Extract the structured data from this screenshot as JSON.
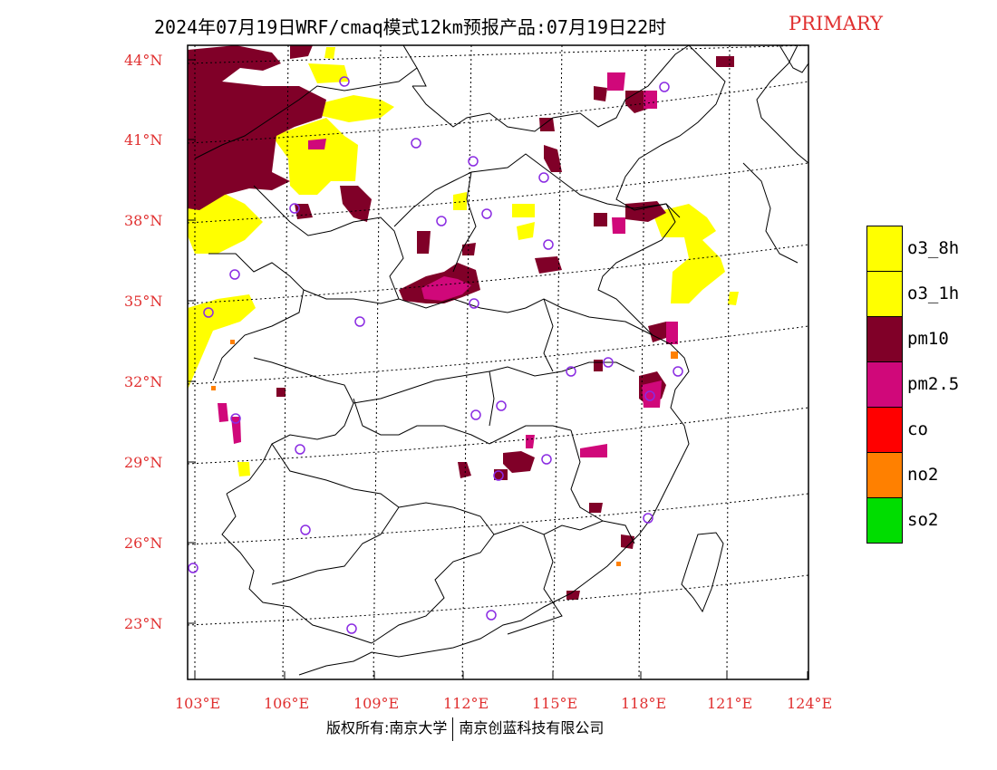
{
  "title": {
    "main": "2024年07月19日WRF/cmaq模式12km预报产品:07月19日22时",
    "pollutant": "PRIMARY"
  },
  "axes": {
    "lat_labels": [
      "44°N",
      "41°N",
      "38°N",
      "35°N",
      "32°N",
      "29°N",
      "26°N",
      "23°N"
    ],
    "lon_labels": [
      "103°E",
      "106°E",
      "109°E",
      "112°E",
      "115°E",
      "118°E",
      "121°E",
      "124°E"
    ]
  },
  "legend": {
    "items": [
      {
        "label": "o3_8h",
        "color": "#ffff00"
      },
      {
        "label": "o3_1h",
        "color": "#ffff00"
      },
      {
        "label": "pm10",
        "color": "#800028"
      },
      {
        "label": "pm2.5",
        "color": "#d0087a"
      },
      {
        "label": "co",
        "color": "#ff0000"
      },
      {
        "label": "no2",
        "color": "#ff8000"
      },
      {
        "label": "so2",
        "color": "#00dd00"
      }
    ]
  },
  "copyright": {
    "left": "版权所有:南京大学",
    "right": "南京创蓝科技有限公司"
  },
  "colors": {
    "yellow": "#ffff00",
    "pm10": "#800028",
    "pm25": "#d0087a",
    "station": "#8a2be2",
    "label_red": "#e03030"
  }
}
